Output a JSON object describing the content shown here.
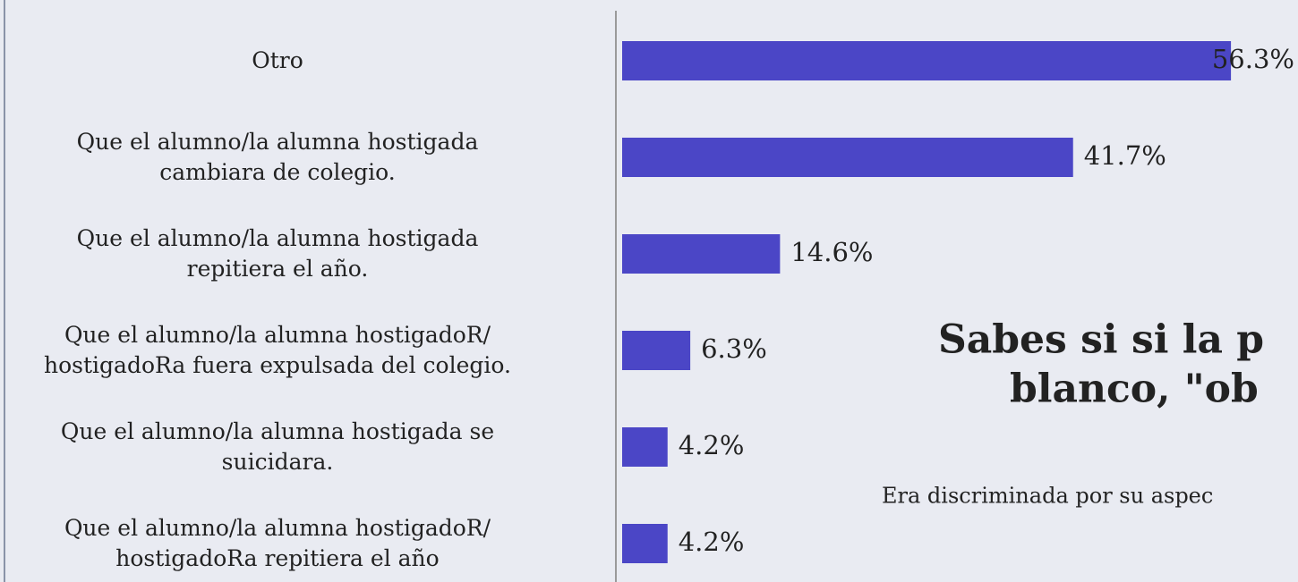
{
  "chart_data": {
    "type": "bar",
    "orientation": "horizontal",
    "color": "#4b46c6",
    "categories": [
      "Otro",
      "Que el alumno/la alumna hostigada\ncambiara de colegio.",
      "Que el alumno/la alumna hostigada\nrepitiera el año.",
      "Que el alumno/la alumna hostigadoR/\nhostigadoRa fuera expulsada del colegio.",
      "Que el alumno/la alumna hostigada  se\nsuicidara.",
      "Que el alumno/la alumna hostigadoR/\nhostigadoRa repitiera el año"
    ],
    "values": [
      56.3,
      41.7,
      14.6,
      6.3,
      4.2,
      4.2
    ],
    "value_labels": [
      "56.3%",
      "41.7%",
      "14.6%",
      "6.3%",
      "4.2%",
      "4.2%"
    ],
    "annotations": [
      "Sabes si si la p",
      "blanco, \"ob",
      "Era discriminada por su aspec"
    ]
  }
}
